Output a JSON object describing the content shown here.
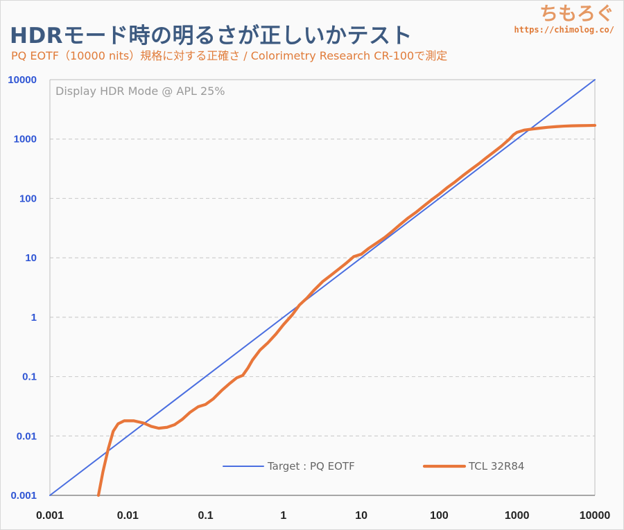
{
  "header": {
    "title": "HDRモード時の明るさが正しいかテスト",
    "subtitle": "PQ EOTF（10000 nits）規格に対する正確さ / Colorimetry Research CR-100で測定",
    "brand_name": "ちもろぐ",
    "brand_url": "https://chimolog.co/"
  },
  "colors": {
    "target": "#4a6ee0",
    "measured": "#e8763a",
    "title": "#3d5a80",
    "subtitle": "#e07b39",
    "y_tick": "#2f55d4"
  },
  "chart_data": {
    "type": "line",
    "annotation": "Display HDR Mode @ APL 25%",
    "x_scale": "log",
    "y_scale": "log",
    "xlim": [
      0.001,
      10000
    ],
    "ylim": [
      0.001,
      10000
    ],
    "x_tick_labels": [
      "0.001",
      "0.01",
      "0.1",
      "1",
      "10",
      "100",
      "1000",
      "10000"
    ],
    "y_tick_labels": [
      "0.001",
      "0.01",
      "0.1",
      "1",
      "10",
      "100",
      "1000",
      "10000"
    ],
    "grid": "horizontal dashed",
    "legend_position": "bottom",
    "series": [
      {
        "name": "Target : PQ EOTF",
        "points": [
          [
            0.001,
            0.001
          ],
          [
            10000,
            10000
          ]
        ]
      },
      {
        "name": "TCL 32R84",
        "points": [
          [
            0.0042,
            0.001
          ],
          [
            0.0048,
            0.0025
          ],
          [
            0.0056,
            0.006
          ],
          [
            0.0065,
            0.012
          ],
          [
            0.0075,
            0.016
          ],
          [
            0.009,
            0.018
          ],
          [
            0.012,
            0.018
          ],
          [
            0.016,
            0.0165
          ],
          [
            0.02,
            0.0145
          ],
          [
            0.025,
            0.0135
          ],
          [
            0.032,
            0.014
          ],
          [
            0.04,
            0.0155
          ],
          [
            0.05,
            0.019
          ],
          [
            0.063,
            0.025
          ],
          [
            0.08,
            0.031
          ],
          [
            0.1,
            0.034
          ],
          [
            0.125,
            0.042
          ],
          [
            0.16,
            0.058
          ],
          [
            0.2,
            0.075
          ],
          [
            0.25,
            0.095
          ],
          [
            0.3,
            0.105
          ],
          [
            0.35,
            0.14
          ],
          [
            0.4,
            0.19
          ],
          [
            0.5,
            0.28
          ],
          [
            0.63,
            0.37
          ],
          [
            0.8,
            0.52
          ],
          [
            1.0,
            0.75
          ],
          [
            1.3,
            1.1
          ],
          [
            1.6,
            1.6
          ],
          [
            2.0,
            2.1
          ],
          [
            2.5,
            2.9
          ],
          [
            3.2,
            4.0
          ],
          [
            4.0,
            5.0
          ],
          [
            5.0,
            6.3
          ],
          [
            6.3,
            8.0
          ],
          [
            8.0,
            10.5
          ],
          [
            10,
            11.5
          ],
          [
            12.5,
            14.5
          ],
          [
            16,
            18
          ],
          [
            20,
            22
          ],
          [
            25,
            28
          ],
          [
            32,
            37
          ],
          [
            40,
            47
          ],
          [
            50,
            58
          ],
          [
            63,
            74
          ],
          [
            80,
            95
          ],
          [
            100,
            118
          ],
          [
            125,
            150
          ],
          [
            160,
            190
          ],
          [
            200,
            240
          ],
          [
            250,
            300
          ],
          [
            320,
            380
          ],
          [
            400,
            480
          ],
          [
            500,
            600
          ],
          [
            630,
            760
          ],
          [
            800,
            1000
          ],
          [
            900,
            1180
          ],
          [
            1000,
            1300
          ],
          [
            1250,
            1420
          ],
          [
            1600,
            1480
          ],
          [
            2000,
            1530
          ],
          [
            2500,
            1580
          ],
          [
            3200,
            1620
          ],
          [
            4000,
            1650
          ],
          [
            5000,
            1670
          ],
          [
            6300,
            1680
          ],
          [
            8000,
            1690
          ],
          [
            10000,
            1700
          ]
        ]
      }
    ]
  }
}
